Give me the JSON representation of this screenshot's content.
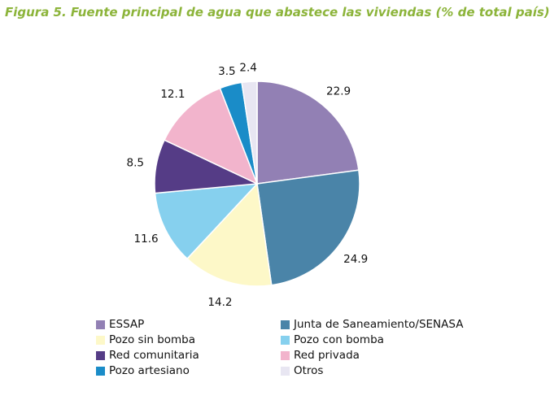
{
  "title": "Figura 5. Fuente principal de agua que abastece las viviendas (% de total país)",
  "chart_data": {
    "type": "pie",
    "title": "Figura 5. Fuente principal de agua que abastece las viviendas (% de total país)",
    "legend_position": "bottom",
    "start_angle": "top, clockwise",
    "slices": [
      {
        "label": "ESSAP",
        "value": 22.9,
        "display": "22.9",
        "color": "#9280b4"
      },
      {
        "label": "Junta de Saneamiento/SENASA",
        "value": 24.9,
        "display": "24.9",
        "color": "#4a84a8"
      },
      {
        "label": "Pozo sin bomba",
        "value": 14.2,
        "display": "14.2",
        "color": "#fdf8c8"
      },
      {
        "label": "Pozo con bomba",
        "value": 11.6,
        "display": "11.6",
        "color": "#86d0ee"
      },
      {
        "label": "Red comunitaria",
        "value": 8.5,
        "display": "8.5",
        "color": "#553c86"
      },
      {
        "label": "Red privada",
        "value": 12.1,
        "display": "12.1",
        "color": "#f2b4cc"
      },
      {
        "label": "Pozo artesiano",
        "value": 3.5,
        "display": "3.5",
        "color": "#1a8cc8"
      },
      {
        "label": "Otros",
        "value": 2.4,
        "display": "2.4",
        "color": "#e8e6f2"
      }
    ]
  }
}
